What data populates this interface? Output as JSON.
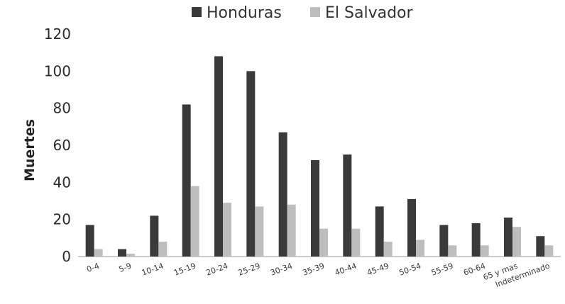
{
  "chart_data": {
    "type": "bar",
    "ylabel": "Muertes",
    "ylim": [
      0,
      120
    ],
    "yticks": [
      0,
      20,
      40,
      60,
      80,
      100,
      120
    ],
    "legend_position": "top-center",
    "grid": false,
    "categories": [
      "0-4",
      "5-9",
      "10-14",
      "15-19",
      "20-24",
      "25-29",
      "30-34",
      "35-39",
      "40-44",
      "45-49",
      "50-54",
      "55-59",
      "60-64",
      "65 y mas",
      "Indeterminado"
    ],
    "series": [
      {
        "name": "Honduras",
        "color": "#3a3a3a",
        "values": [
          17,
          4,
          22,
          82,
          108,
          100,
          67,
          52,
          55,
          27,
          31,
          17,
          18,
          21,
          11
        ]
      },
      {
        "name": "El Salvador",
        "color": "#bdbdbd",
        "values": [
          4,
          1.5,
          8,
          38,
          29,
          27,
          28,
          15,
          15,
          8,
          9,
          6,
          6,
          16,
          6
        ]
      }
    ]
  }
}
